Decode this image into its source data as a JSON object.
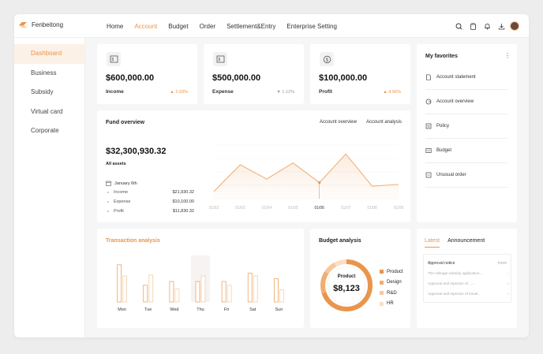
{
  "colors": {
    "accent": "#e9954c",
    "accent_light": "#f4c99d",
    "accent_pale": "#fcf1e6"
  },
  "brand": {
    "name": "Fenbeitong"
  },
  "nav": {
    "items": [
      "Home",
      "Account",
      "Budget",
      "Order",
      "Settlement&Entry",
      "Enterprise Setting"
    ],
    "active": "Account"
  },
  "header_icons": [
    "search-icon",
    "clipboard-icon",
    "bell-icon",
    "download-icon",
    "avatar"
  ],
  "sidebar": {
    "items": [
      "Dashboard",
      "Business",
      "Subsidy",
      "Virtual card",
      "Corporate"
    ],
    "active": "Dashboard"
  },
  "kpis": [
    {
      "value": "$600,000.00",
      "label": "Income",
      "change": "2.93%",
      "direction": "up",
      "icon": "bill-icon"
    },
    {
      "value": "$500,000.00",
      "label": "Expense",
      "change": "1.12%",
      "direction": "down",
      "icon": "bill-icon"
    },
    {
      "value": "$100,000.00",
      "label": "Profit",
      "change": "4.56%",
      "direction": "up",
      "icon": "coin-icon"
    }
  ],
  "fund_overview": {
    "title": "Fund overview",
    "links": [
      "Account overview",
      "Account analysis"
    ],
    "total": "$32,300,930.32",
    "total_label": "All assets",
    "date": "January 6th",
    "rows": [
      {
        "label": "Income",
        "value": "$21,930.32"
      },
      {
        "label": "Expense",
        "value": "$10,100.00"
      },
      {
        "label": "Profit",
        "value": "$11,830.32"
      }
    ]
  },
  "chart_data": [
    {
      "type": "area",
      "title": "Fund overview",
      "categories": [
        "01/02",
        "01/03",
        "01/04",
        "01/05",
        "01/06",
        "01/07",
        "01/08",
        "01/09"
      ],
      "values": [
        8,
        38,
        22,
        40,
        18,
        50,
        14,
        16
      ],
      "highlight_category": "01/06",
      "grid": true,
      "ylim": [
        0,
        60
      ]
    },
    {
      "type": "bar",
      "title": "Transaction analysis",
      "categories": [
        "Mon",
        "Tue",
        "Wed",
        "Thu",
        "Fri",
        "Sat",
        "Sun"
      ],
      "series": [
        {
          "values": [
            80,
            36,
            44,
            44,
            44,
            62,
            50
          ]
        },
        {
          "values": [
            56,
            58,
            28,
            56,
            36,
            56,
            26
          ]
        }
      ],
      "highlight_category": "Thu",
      "ylim": [
        0,
        100
      ]
    },
    {
      "type": "pie",
      "title": "Budget analysis",
      "center_label": "Product",
      "center_value": "$8,123",
      "categories": [
        "Product",
        "Design",
        "R&D",
        "HR"
      ],
      "values": [
        70,
        14,
        8,
        8
      ],
      "colors": [
        "#e9954c",
        "#efae72",
        "#f4c99d",
        "#f8dfc4"
      ]
    }
  ],
  "transaction": {
    "title": "Transaction analysis"
  },
  "budget": {
    "title": "Budget analysis",
    "center_label": "Product",
    "center_value": "$8,123"
  },
  "favorites": {
    "title": "My favorites",
    "more_icon": "more-icon",
    "items": [
      {
        "label": "Account statement",
        "icon": "statement-icon"
      },
      {
        "label": "Account overview",
        "icon": "overview-icon"
      },
      {
        "label": "Policy",
        "icon": "policy-icon"
      },
      {
        "label": "Budget",
        "icon": "budget-icon"
      },
      {
        "label": "Unusual order",
        "icon": "order-icon"
      }
    ]
  },
  "announce": {
    "tabs": [
      "Latest",
      "Announcement"
    ],
    "active": "Latest",
    "box_title": "Approval notice",
    "more": "more",
    "items": [
      "The mileage subsidy application...",
      "Approval and rejection of ......",
      "Approval and rejection of travel..."
    ]
  }
}
